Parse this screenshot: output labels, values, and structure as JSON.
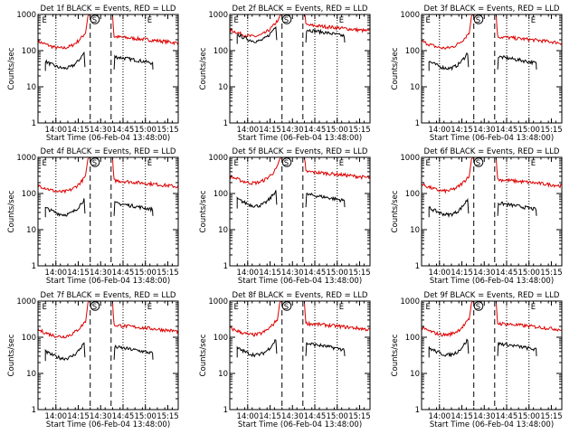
{
  "colors": {
    "events": "#000000",
    "lld": "#dd0000",
    "frame": "#000000"
  },
  "chart_data": [
    {
      "type": "line",
      "title": "Det 1f BLACK = Events, RED = LLD",
      "xlabel": "Start Time (06-Feb-04 13:48:00)",
      "ylabel": "Counts/sec",
      "x_ticks": [
        "14:00",
        "14:15",
        "14:30",
        "14:45",
        "15:00",
        "15:15"
      ],
      "y_ticks": [
        "1",
        "10",
        "100",
        "1000"
      ],
      "y_scale": "log",
      "ylim": [
        1,
        1000
      ],
      "markers": [
        "E",
        "S",
        "E"
      ],
      "events_level": 50,
      "lld_level": 180,
      "series": [
        {
          "name": "Events"
        },
        {
          "name": "LLD"
        }
      ]
    },
    {
      "type": "line",
      "title": "Det 2f BLACK = Events, RED = LLD",
      "xlabel": "Start Time (06-Feb-04 13:48:00)",
      "ylabel": "Counts/sec",
      "x_ticks": [
        "14:00",
        "14:15",
        "14:30",
        "14:45",
        "15:00",
        "15:15"
      ],
      "y_ticks": [
        "1",
        "10",
        "100",
        "1000"
      ],
      "y_scale": "log",
      "ylim": [
        1,
        1000
      ],
      "markers": [
        "E",
        "S",
        "E"
      ],
      "events_level": 280,
      "lld_level": 380,
      "series": [
        {
          "name": "Events"
        },
        {
          "name": "LLD"
        }
      ]
    },
    {
      "type": "line",
      "title": "Det 3f BLACK = Events, RED = LLD",
      "xlabel": "Start Time (06-Feb-04 13:48:00)",
      "ylabel": "Counts/sec",
      "x_ticks": [
        "14:00",
        "14:15",
        "14:30",
        "14:45",
        "15:00",
        "15:15"
      ],
      "y_ticks": [
        "1",
        "10",
        "100",
        "1000"
      ],
      "y_scale": "log",
      "ylim": [
        1,
        1000
      ],
      "markers": [
        "E",
        "S",
        "E"
      ],
      "events_level": 50,
      "lld_level": 180,
      "series": [
        {
          "name": "Events"
        },
        {
          "name": "LLD"
        }
      ]
    },
    {
      "type": "line",
      "title": "Det 4f BLACK = Events, RED = LLD",
      "xlabel": "Start Time (06-Feb-04 13:48:00)",
      "ylabel": "Counts/sec",
      "x_ticks": [
        "14:00",
        "14:15",
        "14:30",
        "14:45",
        "15:00",
        "15:15"
      ],
      "y_ticks": [
        "1",
        "10",
        "100",
        "1000"
      ],
      "y_scale": "log",
      "ylim": [
        1,
        1000
      ],
      "markers": [
        "E",
        "S",
        "E"
      ],
      "events_level": 40,
      "lld_level": 170,
      "series": [
        {
          "name": "Events"
        },
        {
          "name": "LLD"
        }
      ]
    },
    {
      "type": "line",
      "title": "Det 5f BLACK = Events, RED = LLD",
      "xlabel": "Start Time (06-Feb-04 13:48:00)",
      "ylabel": "Counts/sec",
      "x_ticks": [
        "14:00",
        "14:15",
        "14:30",
        "14:45",
        "15:00",
        "15:15"
      ],
      "y_ticks": [
        "1",
        "10",
        "100",
        "1000"
      ],
      "y_scale": "log",
      "ylim": [
        1,
        1000
      ],
      "markers": [
        "E",
        "S",
        "E"
      ],
      "events_level": 70,
      "lld_level": 300,
      "series": [
        {
          "name": "Events"
        },
        {
          "name": "LLD"
        }
      ]
    },
    {
      "type": "line",
      "title": "Det 6f BLACK = Events, RED = LLD",
      "xlabel": "Start Time (06-Feb-04 13:48:00)",
      "ylabel": "Counts/sec",
      "x_ticks": [
        "14:00",
        "14:15",
        "14:30",
        "14:45",
        "15:00",
        "15:15"
      ],
      "y_ticks": [
        "1",
        "10",
        "100",
        "1000"
      ],
      "y_scale": "log",
      "ylim": [
        1,
        1000
      ],
      "markers": [
        "E",
        "S",
        "E"
      ],
      "events_level": 40,
      "lld_level": 180,
      "series": [
        {
          "name": "Events"
        },
        {
          "name": "LLD"
        }
      ]
    },
    {
      "type": "line",
      "title": "Det 7f BLACK = Events, RED = LLD",
      "xlabel": "Start Time (06-Feb-04 13:48:00)",
      "ylabel": "Counts/sec",
      "x_ticks": [
        "14:00",
        "14:15",
        "14:30",
        "14:45",
        "15:00",
        "15:15"
      ],
      "y_ticks": [
        "1",
        "10",
        "100",
        "1000"
      ],
      "y_scale": "log",
      "ylim": [
        1,
        1000
      ],
      "markers": [
        "E",
        "S",
        "E"
      ],
      "events_level": 40,
      "lld_level": 160,
      "series": [
        {
          "name": "Events"
        },
        {
          "name": "LLD"
        }
      ]
    },
    {
      "type": "line",
      "title": "Det 8f BLACK = Events, RED = LLD",
      "xlabel": "Start Time (06-Feb-04 13:48:00)",
      "ylabel": "Counts/sec",
      "x_ticks": [
        "14:00",
        "14:15",
        "14:30",
        "14:45",
        "15:00",
        "15:15"
      ],
      "y_ticks": [
        "1",
        "10",
        "100",
        "1000"
      ],
      "y_scale": "log",
      "ylim": [
        1,
        1000
      ],
      "markers": [
        "E",
        "S",
        "E"
      ],
      "events_level": 50,
      "lld_level": 180,
      "series": [
        {
          "name": "Events"
        },
        {
          "name": "LLD"
        }
      ]
    },
    {
      "type": "line",
      "title": "Det 9f BLACK = Events, RED = LLD",
      "xlabel": "Start Time (06-Feb-04 13:48:00)",
      "ylabel": "Counts/sec",
      "x_ticks": [
        "14:00",
        "14:15",
        "14:30",
        "14:45",
        "15:00",
        "15:15"
      ],
      "y_ticks": [
        "1",
        "10",
        "100",
        "1000"
      ],
      "y_scale": "log",
      "ylim": [
        1,
        1000
      ],
      "markers": [
        "E",
        "S",
        "E"
      ],
      "events_level": 50,
      "lld_level": 180,
      "series": [
        {
          "name": "Events"
        },
        {
          "name": "LLD"
        }
      ]
    }
  ]
}
